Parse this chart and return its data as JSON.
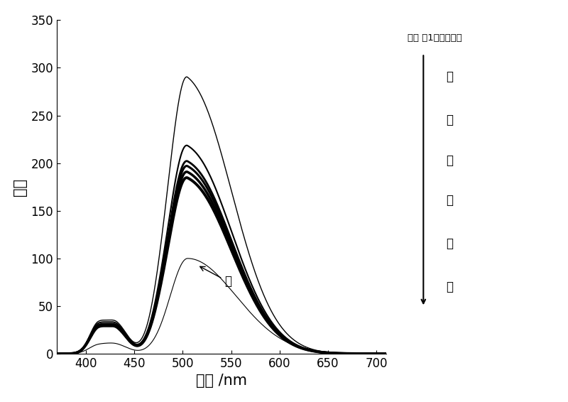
{
  "xlabel": "波长 /nm",
  "ylabel": "强度",
  "xlim": [
    370,
    710
  ],
  "ylim": [
    0,
    350
  ],
  "xticks": [
    400,
    450,
    500,
    550,
    600,
    650,
    700
  ],
  "yticks": [
    0,
    50,
    100,
    150,
    200,
    250,
    300,
    350
  ],
  "annotation_label": "锶",
  "legend_title": "实施 例1所得化合物",
  "legend_items": [
    "鎧",
    "镇",
    "钔",
    "钒",
    "钇",
    "钒"
  ],
  "background_color": "#ffffff",
  "curve_color": "#000000",
  "label_fontsize": 15,
  "tick_fontsize": 12,
  "annot_fontsize": 12,
  "legend_fontsize": 12
}
